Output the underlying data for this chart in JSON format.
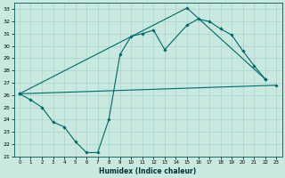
{
  "xlabel": "Humidex (Indice chaleur)",
  "background_color": "#c8e8e0",
  "grid_color": "#a8d4cc",
  "line_color": "#006868",
  "xlim": [
    -0.5,
    23.5
  ],
  "ylim": [
    21,
    33.5
  ],
  "xticks": [
    0,
    1,
    2,
    3,
    4,
    5,
    6,
    7,
    8,
    9,
    10,
    11,
    12,
    13,
    14,
    15,
    16,
    17,
    18,
    19,
    20,
    21,
    22,
    23
  ],
  "yticks": [
    21,
    22,
    23,
    24,
    25,
    26,
    27,
    28,
    29,
    30,
    31,
    32,
    33
  ],
  "series": [
    {
      "x": [
        0,
        1,
        2,
        3,
        4,
        5,
        6,
        7,
        8,
        9,
        10,
        11,
        12,
        13,
        15,
        16,
        17,
        18,
        19,
        20,
        21,
        22
      ],
      "y": [
        26.1,
        25.6,
        25.0,
        23.8,
        23.4,
        22.2,
        21.3,
        21.3,
        24.0,
        29.3,
        30.8,
        31.0,
        31.3,
        29.7,
        31.7,
        32.2,
        32.0,
        31.4,
        30.9,
        29.6,
        28.4,
        27.3
      ]
    },
    {
      "x": [
        0,
        23
      ],
      "y": [
        26.1,
        26.8
      ]
    },
    {
      "x": [
        0,
        15,
        22
      ],
      "y": [
        26.1,
        33.1,
        27.3
      ]
    }
  ]
}
